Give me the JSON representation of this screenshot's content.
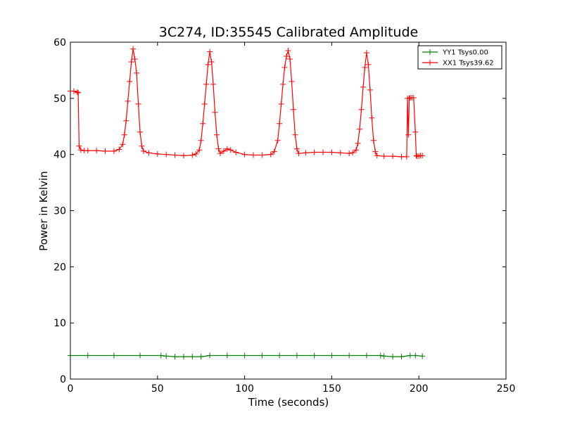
{
  "chart_data": {
    "type": "line",
    "title": "3C274, ID:35545 Calibrated Amplitude",
    "xlabel": "Time (seconds)",
    "ylabel": "Power in Kelvin",
    "xlim": [
      0,
      250
    ],
    "ylim": [
      0,
      60
    ],
    "xticks": [
      "0",
      "50",
      "100",
      "150",
      "200",
      "250"
    ],
    "yticks": [
      "0",
      "10",
      "20",
      "30",
      "40",
      "50",
      "60"
    ],
    "grid": false,
    "legend_position": "top-right",
    "series": [
      {
        "name": "YY1 Tsys0.00",
        "color": "#008000",
        "marker": "+",
        "x": [
          0,
          10,
          25,
          40,
          52,
          55,
          60,
          65,
          70,
          75,
          80,
          90,
          100,
          110,
          120,
          130,
          140,
          150,
          160,
          170,
          178,
          180,
          185,
          190,
          195,
          198,
          202
        ],
        "y": [
          4.2,
          4.2,
          4.2,
          4.2,
          4.2,
          4.1,
          4.0,
          4.0,
          4.0,
          4.0,
          4.2,
          4.2,
          4.2,
          4.2,
          4.2,
          4.2,
          4.2,
          4.2,
          4.2,
          4.2,
          4.2,
          4.1,
          4.0,
          4.0,
          4.2,
          4.2,
          4.1
        ]
      },
      {
        "name": "XX1 Tsys39.62",
        "color": "#ff0000",
        "marker": "+",
        "x": [
          0,
          2,
          4,
          4.5,
          5,
          6,
          8,
          10,
          15,
          20,
          25,
          28,
          30,
          31,
          32,
          33,
          34,
          35,
          36,
          37,
          38,
          39,
          40,
          41,
          42,
          45,
          50,
          55,
          60,
          65,
          70,
          72,
          74,
          75,
          76,
          77,
          78,
          79,
          80,
          81,
          82,
          83,
          84,
          85,
          86,
          88,
          90,
          92,
          95,
          100,
          105,
          110,
          115,
          117,
          119,
          120,
          121,
          122,
          123,
          124,
          125,
          126,
          127,
          128,
          129,
          130,
          131,
          135,
          140,
          145,
          150,
          155,
          160,
          162,
          164,
          165,
          166,
          167,
          168,
          169,
          170,
          171,
          172,
          173,
          174,
          175,
          176,
          180,
          185,
          190,
          193,
          193.5,
          194,
          194.5,
          195,
          196,
          197,
          198,
          198.5,
          199,
          200,
          201,
          202
        ],
        "y": [
          51.3,
          51.3,
          51.1,
          51.0,
          41.5,
          40.8,
          40.7,
          40.7,
          40.7,
          40.6,
          40.6,
          40.9,
          41.8,
          43.5,
          46.0,
          49.5,
          53.0,
          56.5,
          58.8,
          57.0,
          54.5,
          49.0,
          44.0,
          41.5,
          40.6,
          40.3,
          40.1,
          40.0,
          39.9,
          39.8,
          39.9,
          40.1,
          40.8,
          42.5,
          45.5,
          49.0,
          52.5,
          56.0,
          58.3,
          56.5,
          52.5,
          47.5,
          43.5,
          41.0,
          40.2,
          40.6,
          41.0,
          40.8,
          40.4,
          40.0,
          39.9,
          39.9,
          40.0,
          40.5,
          42.5,
          45.5,
          49.0,
          52.5,
          55.5,
          57.5,
          58.5,
          57.0,
          53.0,
          48.0,
          43.5,
          41.0,
          40.2,
          40.3,
          40.4,
          40.4,
          40.4,
          40.3,
          40.2,
          40.3,
          40.8,
          42.0,
          44.5,
          48.0,
          52.0,
          55.5,
          58.1,
          56.0,
          51.5,
          46.5,
          42.5,
          40.5,
          39.8,
          39.7,
          39.7,
          39.6,
          39.6,
          50.0,
          43.5,
          50.0,
          50.1,
          50.1,
          50.1,
          44.0,
          39.8,
          39.7,
          39.7,
          39.8,
          39.8
        ]
      }
    ]
  }
}
